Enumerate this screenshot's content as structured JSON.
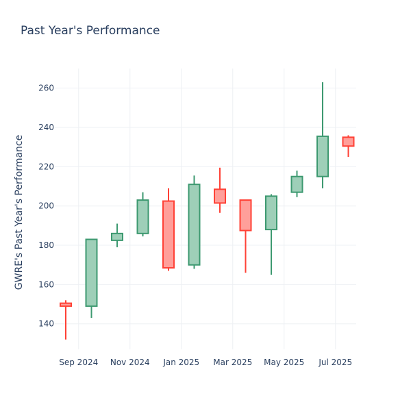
{
  "chart_data": {
    "type": "candlestick",
    "title": "Past Year's Performance",
    "xlabel": "",
    "ylabel": "GWRE's Past Year's Performance",
    "ylim": [
      127,
      270
    ],
    "y_ticks": [
      140,
      160,
      180,
      200,
      220,
      240,
      260
    ],
    "x_ticks": [
      "Sep 2024",
      "Nov 2024",
      "Jan 2025",
      "Mar 2025",
      "May 2025",
      "Jul 2025"
    ],
    "grid": true,
    "legend": "none",
    "colors": {
      "increasing_line": "#3d9970",
      "increasing_fill": "#9ecfb8",
      "decreasing_line": "#ff4136",
      "decreasing_fill": "#ff9f9a",
      "grid": "#eef0f4",
      "text": "#2a3f5f"
    },
    "candles": [
      {
        "period": "Jul 2024",
        "open": 150.5,
        "high": 152,
        "low": 132,
        "close": 149
      },
      {
        "period": "Aug 2024",
        "open": 149,
        "high": 183,
        "low": 143,
        "close": 183
      },
      {
        "period": "Sep 2024",
        "open": 182.5,
        "high": 191,
        "low": 179,
        "close": 186
      },
      {
        "period": "Oct 2024",
        "open": 186,
        "high": 207,
        "low": 184.5,
        "close": 203
      },
      {
        "period": "Nov 2024",
        "open": 202.5,
        "high": 209,
        "low": 167,
        "close": 168.5
      },
      {
        "period": "Dec 2024",
        "open": 170,
        "high": 215.5,
        "low": 168,
        "close": 211
      },
      {
        "period": "Jan 2025",
        "open": 208.5,
        "high": 219.5,
        "low": 196.5,
        "close": 201.5
      },
      {
        "period": "Feb 2025",
        "open": 203,
        "high": 203,
        "low": 166,
        "close": 187.5
      },
      {
        "period": "Mar 2025",
        "open": 188,
        "high": 206,
        "low": 165,
        "close": 205
      },
      {
        "period": "Apr 2025",
        "open": 207,
        "high": 218,
        "low": 204.5,
        "close": 215
      },
      {
        "period": "May 2025",
        "open": 215,
        "high": 263,
        "low": 209,
        "close": 235.5
      },
      {
        "period": "Jun 2025",
        "open": 235,
        "high": 236,
        "low": 225,
        "close": 230.5
      }
    ]
  }
}
